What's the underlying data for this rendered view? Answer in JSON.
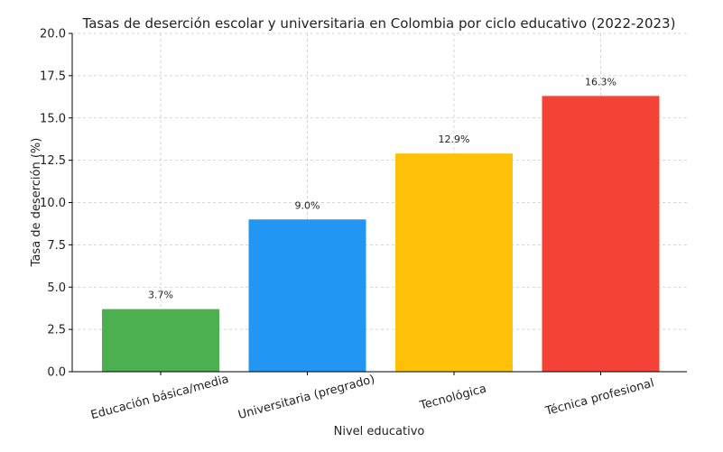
{
  "chart_data": {
    "type": "bar",
    "title": "Tasas de deserción escolar y universitaria en Colombia por ciclo educativo (2022-2023)",
    "xlabel": "Nivel educativo",
    "ylabel": "Tasa de deserción (%)",
    "categories": [
      "Educación básica/media",
      "Universitaria (pregrado)",
      "Tecnológica",
      "Técnica profesional"
    ],
    "values": [
      3.7,
      9.0,
      12.9,
      16.3
    ],
    "value_labels": [
      "3.7%",
      "9.0%",
      "12.9%",
      "16.3%"
    ],
    "bar_colors": [
      "#4caf50",
      "#2196f3",
      "#ffc107",
      "#f44336"
    ],
    "ylim": [
      0,
      20
    ],
    "yticks": [
      0,
      2.5,
      5,
      7.5,
      10,
      12.5,
      15,
      17.5,
      20
    ],
    "ytick_labels": [
      "0.0",
      "2.5",
      "5.0",
      "7.5",
      "10.0",
      "12.5",
      "15.0",
      "17.5",
      "20.0"
    ],
    "grid": true,
    "legend": false
  }
}
